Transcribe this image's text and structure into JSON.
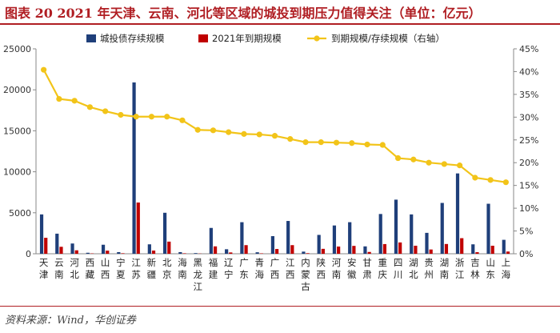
{
  "figure": {
    "title": "图表 20   2021 年天津、云南、河北等区域的城投到期压力值得关注（单位：亿元）",
    "source": "资料来源：Wind，华创证券"
  },
  "colors": {
    "stock": "#1f3f7a",
    "maturing": "#c00000",
    "ratio": "#f2c419",
    "title": "#b01e23"
  },
  "chart_data": {
    "type": "bar",
    "categories": [
      "天津",
      "云南",
      "河北",
      "西藏",
      "山西",
      "宁夏",
      "江苏",
      "新疆",
      "北京",
      "海南",
      "黑龙江",
      "福建",
      "辽宁",
      "广东",
      "青海",
      "广西",
      "江西",
      "内蒙古",
      "陕西",
      "河南",
      "安徽",
      "甘肃",
      "重庆",
      "四川",
      "湖北",
      "贵州",
      "湖南",
      "浙江",
      "吉林",
      "山东",
      "上海"
    ],
    "series": [
      {
        "name": "城投债存续规模",
        "type": "bar",
        "axis": "left",
        "values": [
          4800,
          2450,
          1250,
          120,
          1100,
          200,
          20900,
          1150,
          5000,
          200,
          80,
          3150,
          550,
          3850,
          180,
          2150,
          4000,
          260,
          2300,
          3450,
          3850,
          900,
          4850,
          6600,
          4800,
          2550,
          6200,
          9800,
          1150,
          6100,
          1700
        ]
      },
      {
        "name": "2021年到期规模",
        "type": "bar",
        "axis": "left",
        "values": [
          1950,
          850,
          420,
          40,
          380,
          60,
          6250,
          390,
          1480,
          55,
          25,
          900,
          160,
          1050,
          50,
          580,
          1050,
          70,
          600,
          880,
          960,
          220,
          1180,
          1380,
          980,
          520,
          1190,
          1900,
          190,
          980,
          270
        ]
      },
      {
        "name": "到期规模/存续规模（右轴）",
        "type": "line",
        "axis": "right",
        "values": [
          40.4,
          34.0,
          33.6,
          32.2,
          31.3,
          30.5,
          30.1,
          30.1,
          30.1,
          29.3,
          27.2,
          27.1,
          26.7,
          26.3,
          26.2,
          25.9,
          25.2,
          24.5,
          24.5,
          24.4,
          24.3,
          24.0,
          23.9,
          21.0,
          20.7,
          20.0,
          19.7,
          19.4,
          16.7,
          16.2,
          15.7
        ]
      }
    ],
    "y_left": {
      "ticks": [
        "0",
        "5000",
        "10000",
        "15000",
        "20000",
        "25000"
      ],
      "ylim": [
        0,
        25000
      ]
    },
    "y_right": {
      "ticks": [
        "0%",
        "5%",
        "10%",
        "15%",
        "20%",
        "25%",
        "30%",
        "35%",
        "40%",
        "45%"
      ],
      "ylim": [
        0,
        45
      ]
    },
    "legend_position": "top",
    "grid": false
  }
}
